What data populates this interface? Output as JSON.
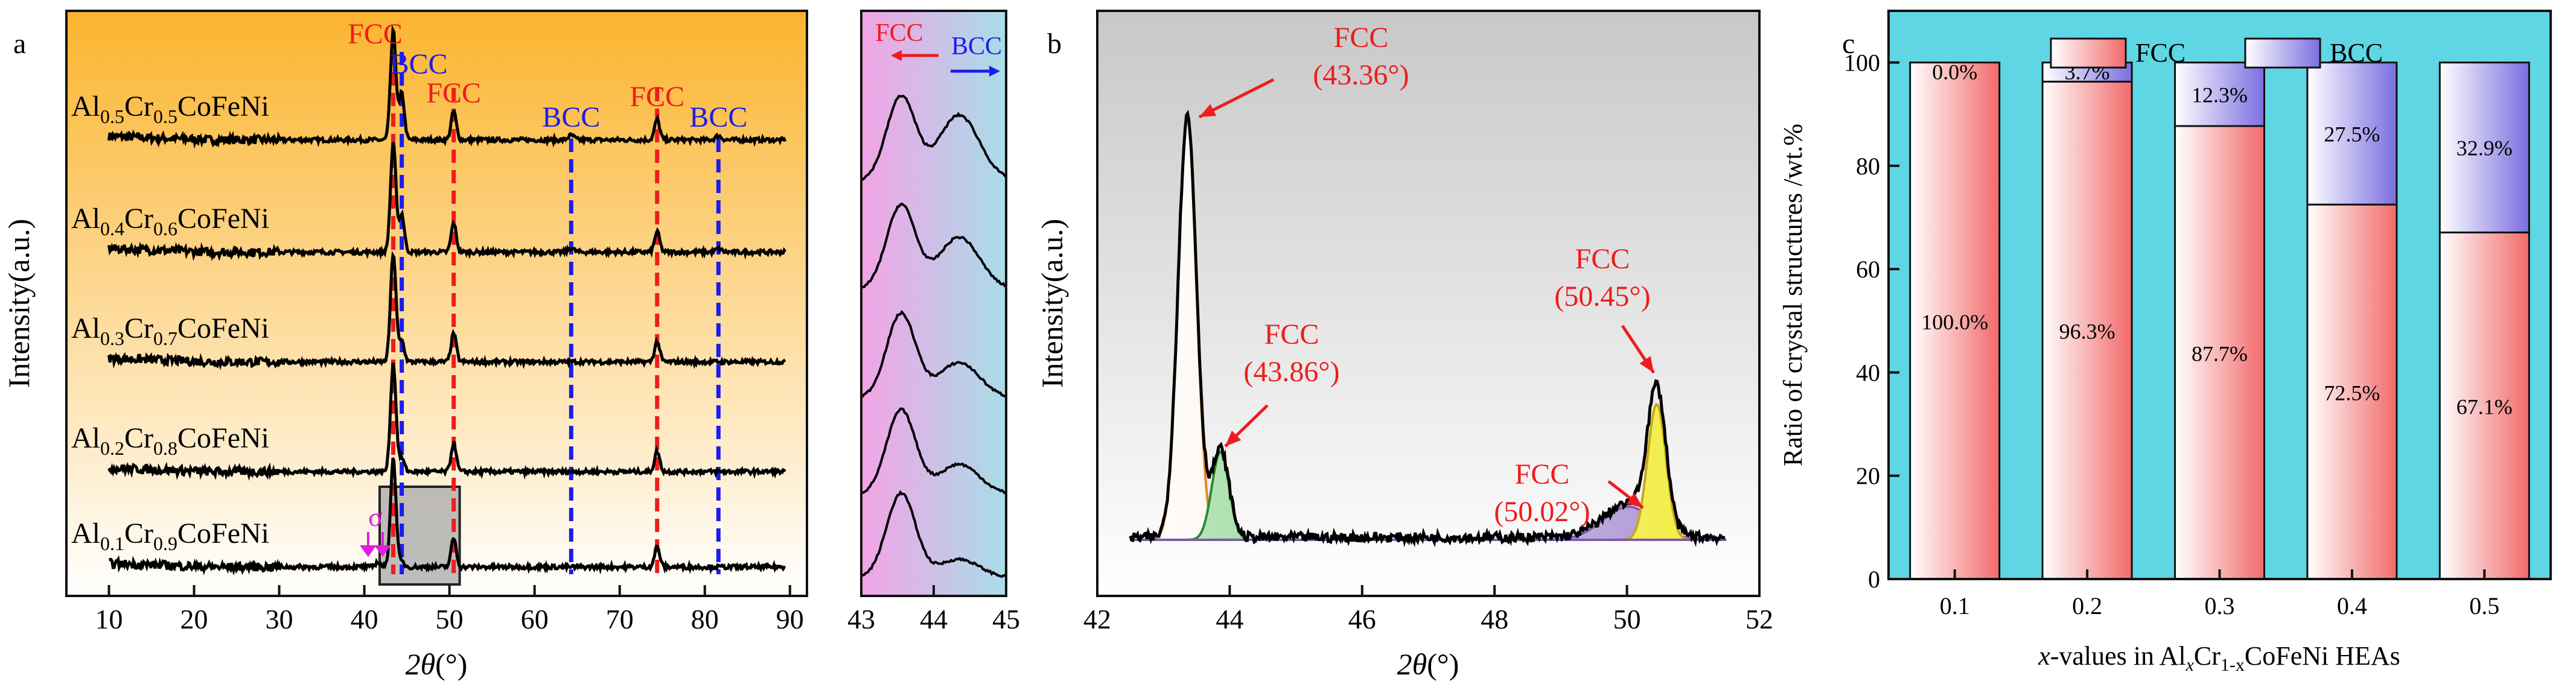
{
  "chart_data": [
    {
      "type": "line",
      "panel_label": "a",
      "xlabel_var": "2θ",
      "xlabel_unit": "(°)",
      "ylabel": "Intensity(a.u.)",
      "xlim": [
        5,
        92
      ],
      "xticks": [
        10,
        20,
        30,
        40,
        50,
        60,
        70,
        80,
        90
      ],
      "series": [
        {
          "name": "Al0.5Cr0.5CoFeNi",
          "label": {
            "p1": "Al",
            "s1": "0.5",
            "p2": "Cr",
            "s2": "0.5",
            "p3": "CoFeNi"
          }
        },
        {
          "name": "Al0.4Cr0.6CoFeNi",
          "label": {
            "p1": "Al",
            "s1": "0.4",
            "p2": "Cr",
            "s2": "0.6",
            "p3": "CoFeNi"
          }
        },
        {
          "name": "Al0.3Cr0.7CoFeNi",
          "label": {
            "p1": "Al",
            "s1": "0.3",
            "p2": "Cr",
            "s2": "0.7",
            "p3": "CoFeNi"
          }
        },
        {
          "name": "Al0.2Cr0.8CoFeNi",
          "label": {
            "p1": "Al",
            "s1": "0.2",
            "p2": "Cr",
            "s2": "0.8",
            "p3": "CoFeNi"
          }
        },
        {
          "name": "Al0.1Cr0.9CoFeNi",
          "label": {
            "p1": "Al",
            "s1": "0.1",
            "p2": "Cr",
            "s2": "0.9",
            "p3": "CoFeNi"
          }
        }
      ],
      "peak_lines": [
        {
          "phase": "FCC",
          "x": 43.4,
          "color": "#ee1c1c"
        },
        {
          "phase": "BCC",
          "x": 44.4,
          "color": "#1c1cee"
        },
        {
          "phase": "FCC",
          "x": 50.5,
          "color": "#ee1c1c"
        },
        {
          "phase": "BCC",
          "x": 64.3,
          "color": "#1c1cee"
        },
        {
          "phase": "FCC",
          "x": 74.4,
          "color": "#ee1c1c"
        },
        {
          "phase": "BCC",
          "x": 81.6,
          "color": "#1c1cee"
        }
      ],
      "annotations": {
        "fcc": "FCC",
        "bcc": "BCC",
        "sigma": "σ"
      },
      "colors": {
        "fcc": "#ee1c1c",
        "bcc": "#1c1cee",
        "sigma": "#e020e0",
        "bg_top": "#fbb42e",
        "bg_bottom": "#ffffff"
      }
    },
    {
      "type": "line",
      "panel_label": "",
      "inset_of": "a",
      "xlim": [
        43,
        45
      ],
      "xticks": [
        43,
        44,
        45
      ],
      "annotations": {
        "fcc": "FCC",
        "bcc": "BCC"
      },
      "colors": {
        "left": "#f3a3e6",
        "right": "#a8dde8"
      }
    },
    {
      "type": "line",
      "panel_label": "b",
      "xlabel_var": "2θ",
      "xlabel_unit": "(°)",
      "ylabel": "Intensity(a.u.)",
      "xlim": [
        42,
        52
      ],
      "xticks": [
        42,
        44,
        46,
        48,
        50,
        52
      ],
      "peaks": [
        {
          "label": "FCC",
          "position_text": "(43.36°)",
          "x": 43.36,
          "fill": "#f5c89a",
          "stroke": "#e8862a"
        },
        {
          "label": "FCC",
          "position_text": "(43.86°)",
          "x": 43.86,
          "fill": "#4cb84c",
          "stroke": "#2a8a2a"
        },
        {
          "label": "FCC",
          "position_text": "(50.02°)",
          "x": 50.02,
          "fill": "#b8a0d8",
          "stroke": "#7a5cb0"
        },
        {
          "label": "FCC",
          "position_text": "(50.45°)",
          "x": 50.45,
          "fill": "#f2f05a",
          "stroke": "#c8a81a"
        }
      ],
      "colors": {
        "annotation": "#ee1c1c",
        "bg_top": "#c8c8c8",
        "bg_bottom": "#ffffff"
      }
    },
    {
      "type": "bar",
      "stacked": true,
      "panel_label": "c",
      "categories": [
        "0.1",
        "0.2",
        "0.3",
        "0.4",
        "0.5"
      ],
      "series": [
        {
          "name": "FCC",
          "values": [
            100.0,
            96.3,
            87.7,
            72.5,
            67.1
          ],
          "labels": [
            "100.0%",
            "96.3%",
            "87.7%",
            "72.5%",
            "67.1%"
          ],
          "color": "#f26a6a"
        },
        {
          "name": "BCC",
          "values": [
            0.0,
            3.7,
            12.3,
            27.5,
            32.9
          ],
          "labels": [
            "0.0%",
            "3.7%",
            "12.3%",
            "27.5%",
            "32.9%"
          ],
          "color": "#7b6ee0"
        }
      ],
      "ylabel": "Ratio of crystal structures /wt.%",
      "xlabel": {
        "prefix_italic": "x",
        "mid": "-values in Al",
        "sub1": "x",
        "mid2": "Cr",
        "sub2": "1-x",
        "suffix": "CoFeNi HEAs"
      },
      "ylim": [
        0,
        110
      ],
      "yticks": [
        0,
        20,
        40,
        60,
        80,
        100
      ],
      "legend": "top-center",
      "colors": {
        "bg": "#5fd6e4"
      }
    }
  ]
}
